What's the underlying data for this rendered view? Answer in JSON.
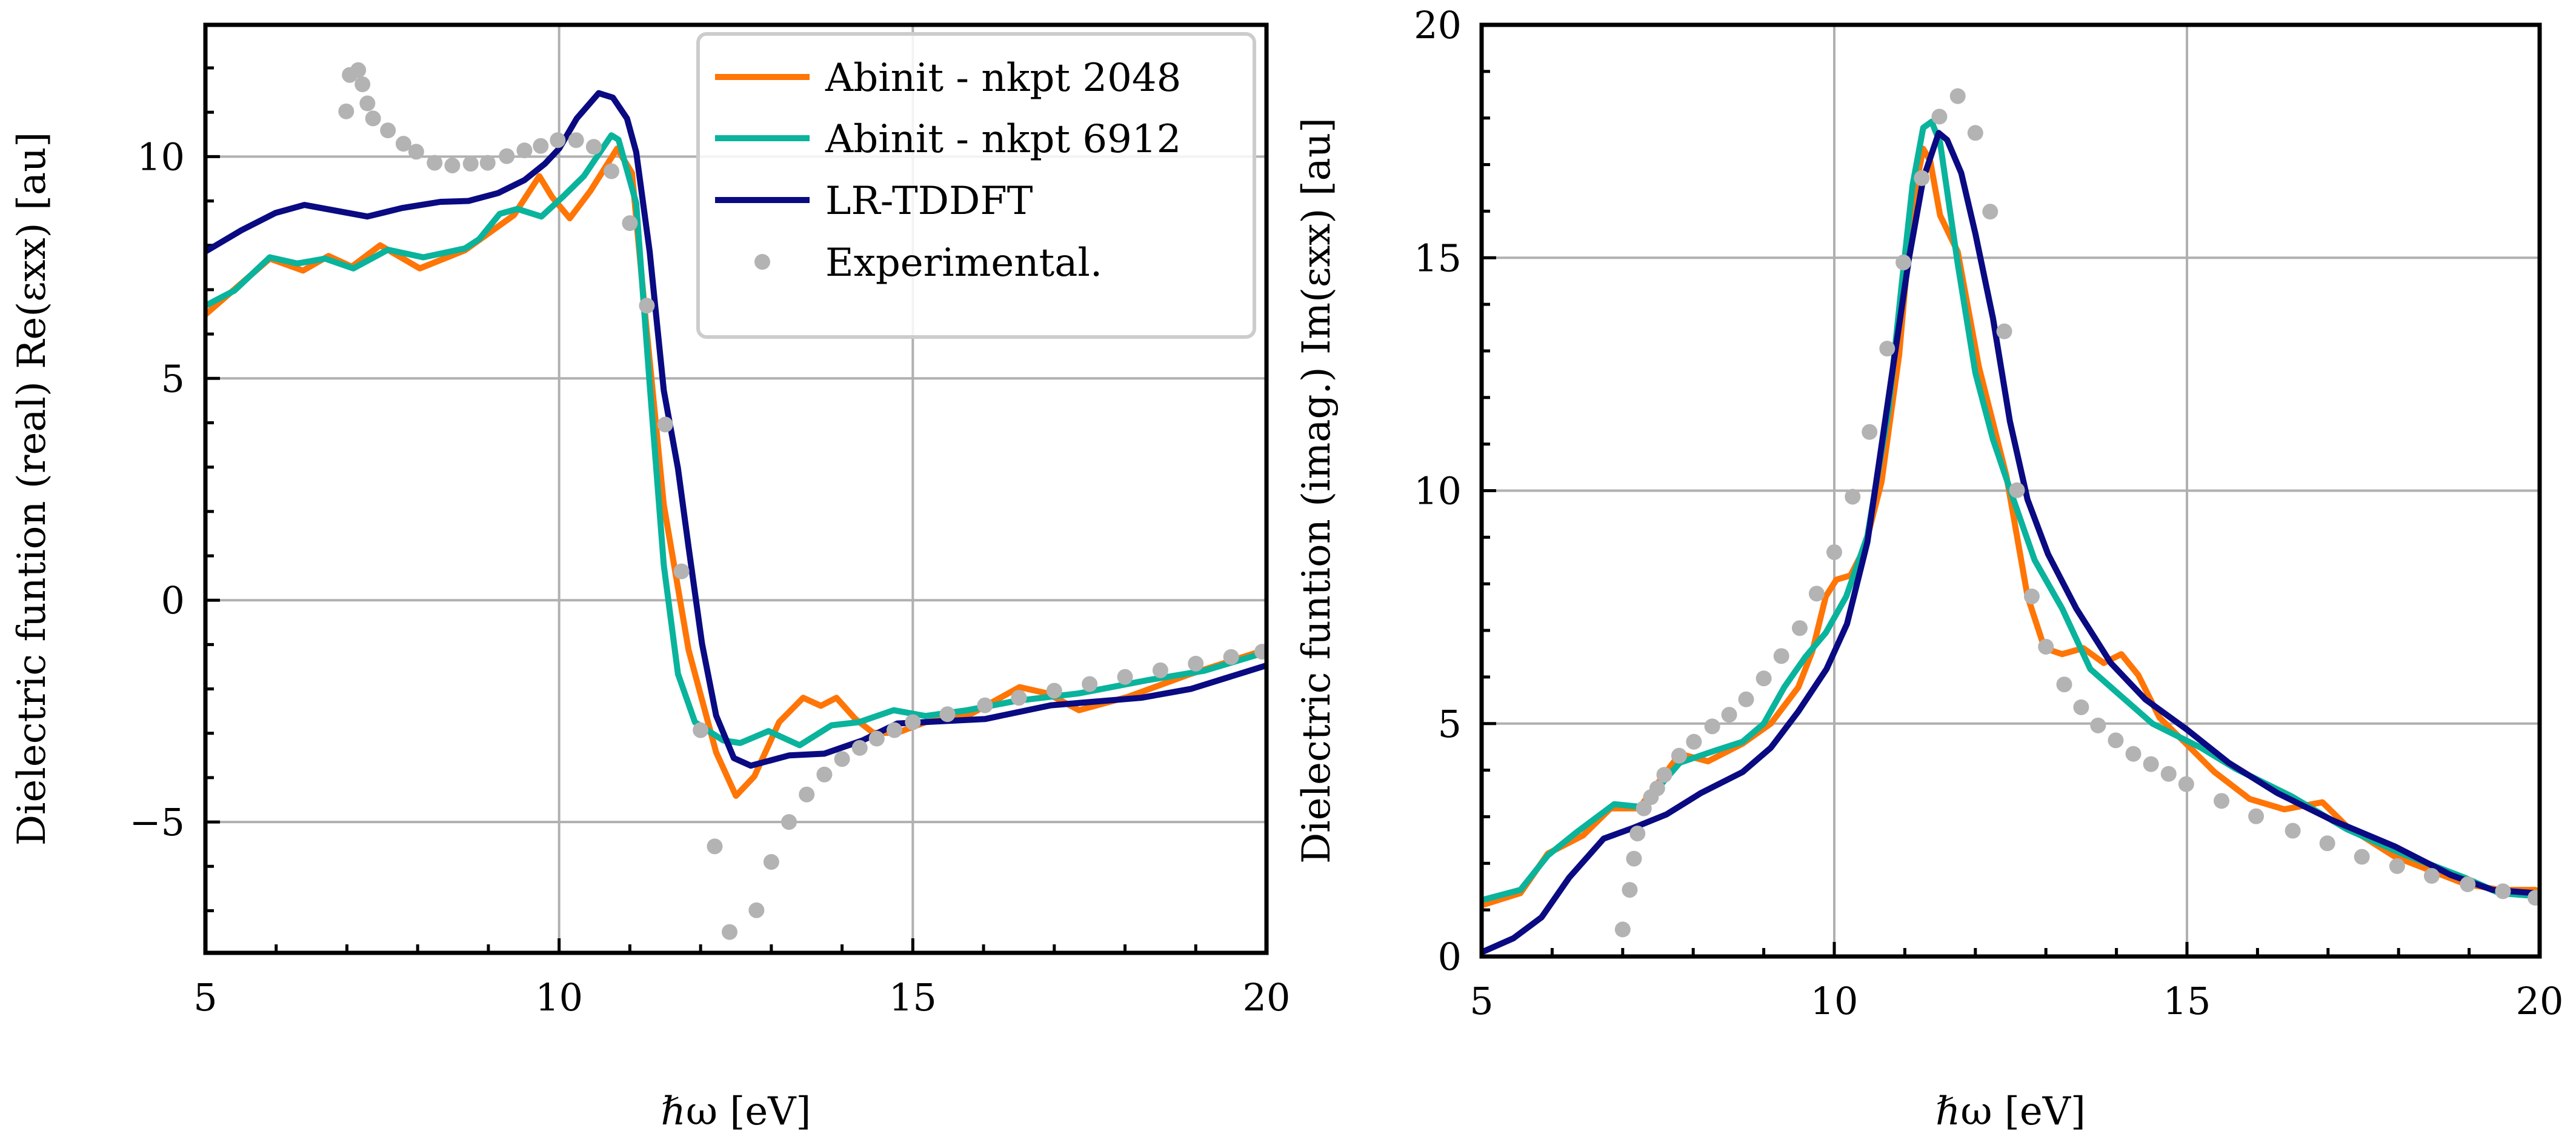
{
  "colors": {
    "orange": "#ff7506",
    "teal": "#0ab39c",
    "navy": "#0a0a82",
    "experimental": "#b3b3b3",
    "grid": "#b0b0b0"
  },
  "legend": {
    "placement": "top-right of left panel",
    "entries": [
      "Abinit - nkpt 2048",
      "Abinit - nkpt 6912",
      "LR-TDDFT",
      "Experimental."
    ]
  },
  "chart_data": [
    {
      "type": "line",
      "xlabel": "ℏω [eV]",
      "ylabel": "Dielectric funtion (real) Re(εxx) [au]",
      "xlim": [
        5,
        20
      ],
      "ylim": [
        -7.95,
        12.97
      ],
      "xticks": [
        "5",
        "10",
        "15",
        "20"
      ],
      "yticks": [
        "−5",
        "0",
        "5",
        "10"
      ],
      "ytick_values": [
        -5,
        0,
        5,
        10
      ],
      "xtick_values": [
        5,
        10,
        15,
        20
      ],
      "grid": true,
      "legend": "top-right",
      "series": [
        {
          "name": "Abinit - nkpt 2048",
          "color": "#ff7506",
          "x": [
            5.0,
            5.91,
            6.38,
            6.74,
            7.07,
            7.47,
            8.03,
            8.67,
            9.36,
            9.72,
            9.9,
            10.15,
            10.44,
            10.82,
            11.03,
            11.23,
            11.48,
            11.83,
            12.22,
            12.5,
            12.76,
            13.11,
            13.45,
            13.7,
            13.92,
            14.19,
            14.44,
            14.78,
            15.18,
            15.77,
            16.51,
            16.9,
            17.35,
            18.04,
            18.93,
            19.98
          ],
          "y": [
            6.44,
            7.7,
            7.43,
            7.76,
            7.52,
            8.0,
            7.48,
            7.89,
            8.68,
            9.56,
            9.09,
            8.61,
            9.22,
            10.18,
            9.63,
            6.23,
            2.15,
            -1.12,
            -3.43,
            -4.41,
            -3.97,
            -2.75,
            -2.2,
            -2.38,
            -2.2,
            -2.68,
            -2.99,
            -2.99,
            -2.75,
            -2.61,
            -1.96,
            -2.1,
            -2.48,
            -2.18,
            -1.66,
            -1.12
          ]
        },
        {
          "name": "Abinit - nkpt 6912",
          "color": "#0ab39c",
          "x": [
            5.0,
            5.41,
            5.91,
            6.3,
            6.69,
            7.09,
            7.58,
            8.08,
            8.67,
            8.87,
            9.16,
            9.41,
            9.75,
            10.05,
            10.35,
            10.74,
            10.84,
            11.09,
            11.28,
            11.48,
            11.68,
            11.92,
            12.32,
            12.56,
            12.96,
            13.4,
            13.85,
            14.24,
            14.73,
            15.18,
            15.77,
            16.46,
            17.35,
            18.33,
            19.12,
            19.98
          ],
          "y": [
            6.64,
            6.98,
            7.73,
            7.59,
            7.7,
            7.48,
            7.9,
            7.73,
            7.93,
            8.14,
            8.71,
            8.82,
            8.65,
            9.09,
            9.56,
            10.48,
            10.38,
            8.95,
            4.87,
            0.79,
            -1.66,
            -2.75,
            -3.16,
            -3.22,
            -2.95,
            -3.27,
            -2.82,
            -2.75,
            -2.48,
            -2.61,
            -2.48,
            -2.27,
            -2.1,
            -1.8,
            -1.59,
            -1.18
          ]
        },
        {
          "name": "LR-TDDFT",
          "color": "#0a0a82",
          "x": [
            5.0,
            5.51,
            5.99,
            6.4,
            7.29,
            7.78,
            8.32,
            8.72,
            9.14,
            9.51,
            9.8,
            10.0,
            10.25,
            10.56,
            10.76,
            10.96,
            11.09,
            11.28,
            11.48,
            11.68,
            11.83,
            12.02,
            12.22,
            12.47,
            12.71,
            13.25,
            13.75,
            14.29,
            14.78,
            16.02,
            16.95,
            18.23,
            18.93,
            19.98
          ],
          "y": [
            7.86,
            8.34,
            8.73,
            8.91,
            8.65,
            8.84,
            8.98,
            9.0,
            9.18,
            9.47,
            9.84,
            10.18,
            10.86,
            11.43,
            11.33,
            10.86,
            10.1,
            7.86,
            4.73,
            2.97,
            1.2,
            -0.98,
            -2.6,
            -3.56,
            -3.73,
            -3.5,
            -3.46,
            -3.16,
            -2.78,
            -2.68,
            -2.37,
            -2.2,
            -2.0,
            -1.48
          ]
        },
        {
          "name": "Experimental.",
          "color": "#b3b3b3",
          "style": "points",
          "x": [
            6.99,
            7.04,
            7.16,
            7.22,
            7.29,
            7.37,
            7.58,
            7.8,
            7.98,
            8.24,
            8.49,
            8.75,
            8.99,
            9.26,
            9.51,
            9.74,
            9.98,
            10.24,
            10.49,
            10.74,
            11.0,
            11.24,
            11.5,
            11.73,
            12.0,
            12.2,
            12.41,
            12.79,
            13.0,
            13.25,
            13.5,
            13.75,
            14.0,
            14.25,
            14.49,
            14.74,
            15.0,
            15.49,
            16.02,
            16.5,
            17.0,
            17.5,
            18.0,
            18.5,
            19.0,
            19.5,
            19.94
          ],
          "y": [
            11.02,
            11.84,
            11.95,
            11.63,
            11.2,
            10.86,
            10.59,
            10.29,
            10.11,
            9.86,
            9.8,
            9.84,
            9.86,
            10.01,
            10.14,
            10.24,
            10.37,
            10.37,
            10.22,
            9.67,
            8.5,
            6.64,
            3.96,
            0.65,
            -2.93,
            -5.55,
            -7.48,
            -6.99,
            -5.9,
            -5.0,
            -4.38,
            -3.93,
            -3.58,
            -3.33,
            -3.12,
            -2.93,
            -2.75,
            -2.57,
            -2.37,
            -2.2,
            -2.04,
            -1.89,
            -1.73,
            -1.58,
            -1.43,
            -1.28,
            -1.16
          ]
        }
      ]
    },
    {
      "type": "line",
      "xlabel": "ℏω [eV]",
      "ylabel": "Dielectric funtion (imag.) Im(εxx) [au]",
      "xlim": [
        5,
        20
      ],
      "ylim": [
        0,
        20
      ],
      "xticks": [
        "5",
        "10",
        "15",
        "20"
      ],
      "yticks": [
        "0",
        "5",
        "10",
        "15",
        "20"
      ],
      "ytick_values": [
        0,
        5,
        10,
        15,
        20
      ],
      "xtick_values": [
        5,
        10,
        15,
        20
      ],
      "grid": true,
      "series": [
        {
          "name": "Abinit - nkpt 2048",
          "color": "#ff7506",
          "x": [
            5.0,
            5.55,
            5.94,
            6.44,
            6.83,
            7.23,
            7.81,
            8.21,
            8.7,
            9.1,
            9.49,
            9.69,
            9.88,
            10.03,
            10.23,
            10.43,
            10.67,
            10.92,
            11.11,
            11.26,
            11.36,
            11.5,
            11.75,
            12.05,
            12.44,
            12.74,
            12.98,
            13.23,
            13.53,
            13.82,
            14.07,
            14.31,
            14.61,
            15.0,
            15.39,
            15.89,
            16.38,
            16.92,
            17.27,
            17.95,
            18.94,
            19.43,
            19.94
          ],
          "y": [
            1.1,
            1.36,
            2.21,
            2.6,
            3.18,
            3.18,
            4.35,
            4.19,
            4.57,
            5.0,
            5.78,
            6.56,
            7.73,
            8.09,
            8.18,
            8.77,
            10.19,
            12.92,
            16.17,
            17.34,
            17.08,
            15.91,
            15.13,
            12.66,
            10.32,
            7.73,
            6.62,
            6.49,
            6.62,
            6.3,
            6.49,
            6.04,
            5.13,
            4.55,
            3.96,
            3.38,
            3.16,
            3.31,
            2.79,
            2.14,
            1.56,
            1.43,
            1.43
          ]
        },
        {
          "name": "Abinit - nkpt 6912",
          "color": "#0ab39c",
          "x": [
            5.0,
            5.55,
            5.94,
            6.34,
            6.88,
            7.27,
            7.81,
            8.31,
            8.7,
            9.0,
            9.29,
            9.59,
            9.88,
            10.17,
            10.47,
            10.77,
            10.96,
            11.11,
            11.26,
            11.38,
            11.5,
            11.75,
            12.0,
            12.25,
            12.54,
            12.84,
            13.23,
            13.63,
            14.02,
            14.51,
            15.2,
            15.69,
            16.48,
            17.27,
            18.05,
            18.94,
            19.43,
            19.94
          ],
          "y": [
            1.21,
            1.43,
            2.17,
            2.66,
            3.27,
            3.21,
            4.16,
            4.42,
            4.61,
            5.0,
            5.78,
            6.43,
            6.95,
            7.73,
            9.03,
            11.75,
            14.48,
            16.56,
            17.79,
            17.92,
            17.47,
            14.87,
            12.53,
            11.1,
            9.81,
            8.51,
            7.47,
            6.17,
            5.65,
            5.0,
            4.48,
            4.03,
            3.44,
            2.73,
            2.21,
            1.69,
            1.36,
            1.3
          ]
        },
        {
          "name": "LR-TDDFT",
          "color": "#0a0a82",
          "x": [
            5.0,
            5.45,
            5.85,
            6.24,
            6.73,
            7.13,
            7.62,
            8.11,
            8.7,
            9.1,
            9.49,
            9.89,
            10.18,
            10.47,
            10.67,
            10.87,
            11.06,
            11.26,
            11.48,
            11.6,
            11.8,
            12.0,
            12.25,
            12.49,
            12.74,
            13.03,
            13.43,
            13.92,
            14.41,
            15.0,
            15.59,
            16.28,
            17.07,
            17.95,
            18.74,
            19.33,
            19.94
          ],
          "y": [
            0.09,
            0.39,
            0.84,
            1.69,
            2.53,
            2.75,
            3.05,
            3.51,
            3.96,
            4.48,
            5.26,
            6.17,
            7.14,
            8.9,
            10.97,
            13.05,
            15.0,
            16.69,
            17.68,
            17.53,
            16.82,
            15.52,
            13.7,
            11.49,
            9.81,
            8.64,
            7.47,
            6.3,
            5.52,
            4.87,
            4.16,
            3.51,
            2.92,
            2.36,
            1.75,
            1.43,
            1.36
          ]
        },
        {
          "name": "Experimental.",
          "color": "#b3b3b3",
          "style": "points",
          "x": [
            7.0,
            7.1,
            7.16,
            7.21,
            7.3,
            7.4,
            7.49,
            7.59,
            7.8,
            8.01,
            8.27,
            8.51,
            8.75,
            9.0,
            9.25,
            9.51,
            9.75,
            10.0,
            10.26,
            10.5,
            10.75,
            10.98,
            11.24,
            11.49,
            11.75,
            12.0,
            12.21,
            12.41,
            12.59,
            12.8,
            13.0,
            13.26,
            13.5,
            13.74,
            13.99,
            14.24,
            14.49,
            14.74,
            14.99,
            15.49,
            15.98,
            16.5,
            16.99,
            17.48,
            17.98,
            18.47,
            18.98,
            19.48,
            19.94
          ],
          "y": [
            0.58,
            1.43,
            2.1,
            2.64,
            3.18,
            3.42,
            3.61,
            3.9,
            4.31,
            4.61,
            4.94,
            5.19,
            5.52,
            5.97,
            6.45,
            7.05,
            7.79,
            8.68,
            9.87,
            11.26,
            13.05,
            14.9,
            16.71,
            18.03,
            18.47,
            17.68,
            15.99,
            13.42,
            10.01,
            7.73,
            6.65,
            5.84,
            5.35,
            4.96,
            4.64,
            4.35,
            4.13,
            3.92,
            3.7,
            3.34,
            3.01,
            2.7,
            2.43,
            2.14,
            1.94,
            1.73,
            1.55,
            1.4,
            1.26
          ]
        }
      ]
    }
  ]
}
